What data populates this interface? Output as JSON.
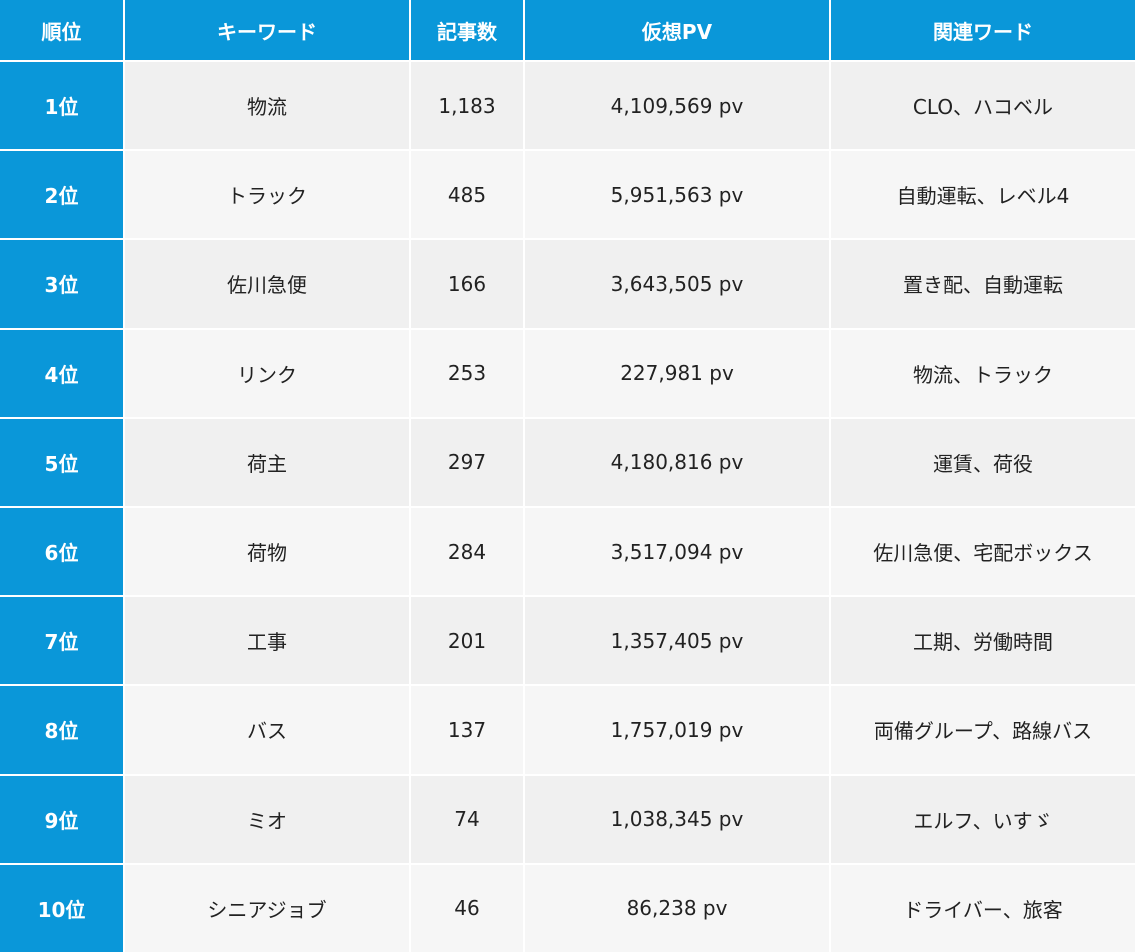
{
  "table": {
    "header": [
      "順位",
      "キーワード",
      "記事数",
      "仮想PV",
      "関連ワード"
    ],
    "rows": [
      [
        "1位",
        "物流",
        "1,183",
        "4,109,569 pv",
        "CLO、ハコベル"
      ],
      [
        "2位",
        "トラック",
        "485",
        "5,951,563 pv",
        "自動運転、レベル4"
      ],
      [
        "3位",
        "佐川急便",
        "166",
        "3,643,505 pv",
        "置き配、自動運転"
      ],
      [
        "4位",
        "リンク",
        "253",
        "227,981 pv",
        "物流、トラック"
      ],
      [
        "5位",
        "荷主",
        "297",
        "4,180,816 pv",
        "運賃、荷役"
      ],
      [
        "6位",
        "荷物",
        "284",
        "3,517,094 pv",
        "佐川急便、宅配ボックス"
      ],
      [
        "7位",
        "工事",
        "201",
        "1,357,405 pv",
        "工期、労働時間"
      ],
      [
        "8位",
        "バス",
        "137",
        "1,757,019 pv",
        "両備グループ、路線バス"
      ],
      [
        "9位",
        "ミオ",
        "74",
        "1,038,345 pv",
        "エルフ、いすゞ"
      ],
      [
        "10位",
        "シニアジョブ",
        "46",
        "86,238 pv",
        "ドライバー、旅客"
      ]
    ]
  }
}
